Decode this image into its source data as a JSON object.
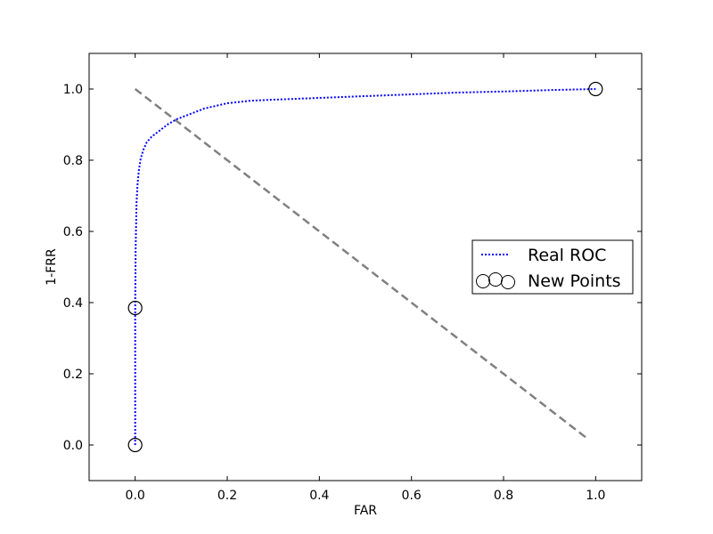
{
  "chart_data": {
    "type": "line",
    "xlabel": "FAR",
    "ylabel": "1-FRR",
    "xlim": [
      -0.1,
      1.1
    ],
    "ylim": [
      -0.1,
      1.1
    ],
    "x_ticks": [
      0.0,
      0.2,
      0.4,
      0.6,
      0.8,
      1.0
    ],
    "y_ticks": [
      0.0,
      0.2,
      0.4,
      0.6,
      0.8,
      1.0
    ],
    "x_tick_labels": [
      "0.0",
      "0.2",
      "0.4",
      "0.6",
      "0.8",
      "1.0"
    ],
    "y_tick_labels": [
      "0.0",
      "0.2",
      "0.4",
      "0.6",
      "0.8",
      "1.0"
    ],
    "legend_position": "center-right",
    "series": [
      {
        "name": "Real ROC",
        "style": "dotted",
        "color": "#0000ff",
        "x": [
          0.0,
          0.0,
          0.0,
          0.0005,
          0.001,
          0.002,
          0.003,
          0.005,
          0.008,
          0.012,
          0.018,
          0.025,
          0.035,
          0.05,
          0.07,
          0.09,
          0.12,
          0.15,
          0.2,
          0.25,
          0.3,
          0.4,
          0.5,
          0.6,
          0.7,
          0.8,
          0.9,
          1.0
        ],
        "y": [
          0.0,
          0.2,
          0.385,
          0.46,
          0.55,
          0.62,
          0.68,
          0.73,
          0.77,
          0.805,
          0.83,
          0.85,
          0.865,
          0.88,
          0.9,
          0.915,
          0.93,
          0.945,
          0.96,
          0.967,
          0.97,
          0.975,
          0.98,
          0.985,
          0.99,
          0.993,
          0.997,
          1.0
        ]
      },
      {
        "name": "New Points",
        "style": "markers",
        "marker": "open-circle",
        "color": "#000000",
        "x": [
          0.0,
          0.0,
          1.0
        ],
        "y": [
          0.0,
          0.385,
          1.0
        ]
      },
      {
        "style": "dashed",
        "color": "#808080",
        "x": [
          0.0,
          0.98
        ],
        "y": [
          1.0,
          0.02
        ]
      }
    ]
  }
}
